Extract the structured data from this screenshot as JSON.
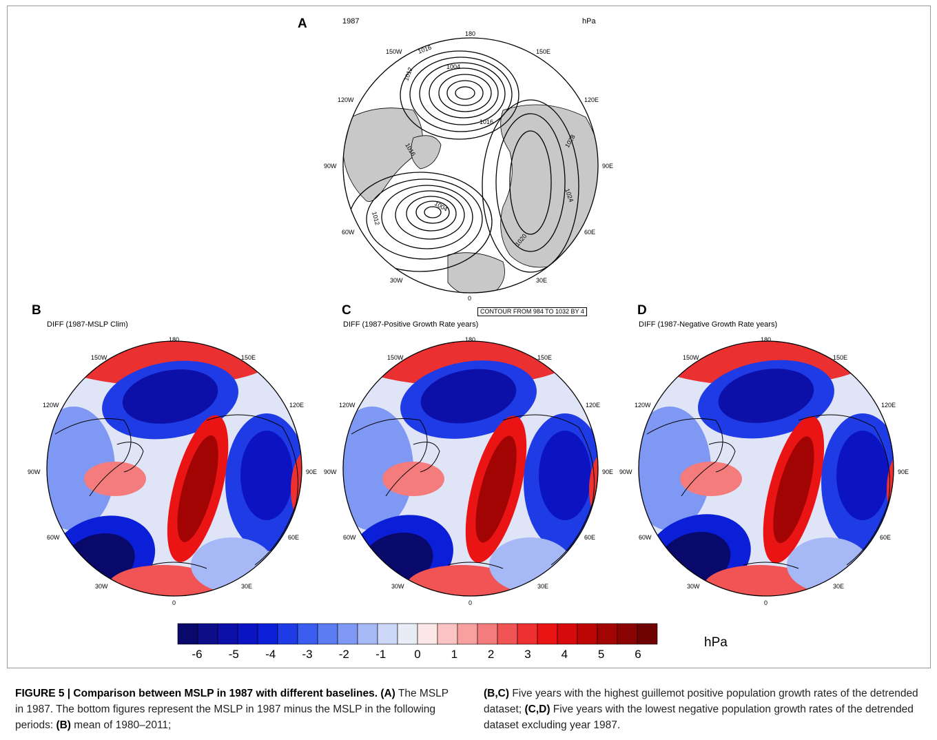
{
  "panels": {
    "A": {
      "letter": "A",
      "year": "1987",
      "unit": "hPa"
    },
    "B": {
      "letter": "B",
      "title": "DIFF (1987-MSLP Clim)"
    },
    "C": {
      "letter": "C",
      "title": "DIFF (1987-Positive Growth Rate years)"
    },
    "D": {
      "letter": "D",
      "title": "DIFF (1987-Negative Growth Rate years)"
    }
  },
  "longitude_labels": {
    "top": "180",
    "top_left": "150W",
    "top_right": "150E",
    "upper_left": "120W",
    "upper_right": "120E",
    "left": "90W",
    "right": "90E",
    "lower_left": "60W",
    "lower_right": "60E",
    "bottom_left": "30W",
    "bottom_right": "30E",
    "bottom": "0"
  },
  "contour_labels_a": [
    "1016",
    "1004",
    "1012",
    "1016",
    "1016",
    "1028",
    "1024",
    "1004",
    "1012",
    "1020"
  ],
  "contour_note": "CONTOUR FROM 984 TO 1032 BY 4",
  "colorbar": {
    "ticks": [
      "-6",
      "-5",
      "-4",
      "-3",
      "-2",
      "-1",
      "0",
      "1",
      "2",
      "3",
      "4",
      "5",
      "6"
    ],
    "unit": "hPa",
    "colors": [
      "#08096b",
      "#0c0e8a",
      "#0c10a8",
      "#0a14c2",
      "#0b1ed8",
      "#1e3be6",
      "#3b5df0",
      "#5c7cf2",
      "#7f98f4",
      "#a7b8f6",
      "#cdd7f7",
      "#e8ecf4",
      "#fde6e6",
      "#fbc3c3",
      "#f8a0a0",
      "#f47c7c",
      "#f05454",
      "#ee3030",
      "#ea1414",
      "#d60a0a",
      "#bc0606",
      "#a20404",
      "#890303",
      "#700202"
    ]
  },
  "caption": {
    "lead": "FIGURE 5 | Comparison between MSLP in 1987 with different baselines.",
    "p1_a": "(A)",
    "p1_a_text": " The MSLP in 1987. The bottom figures represent the MSLP in 1987 minus the MSLP in the following periods: ",
    "p1_b": "(B)",
    "p1_b_text": " mean of 1980–2011;",
    "p2_bc": "(B,C)",
    "p2_bc_text": " Five years with the highest guillemot positive population growth rates of the detrended dataset; ",
    "p2_cd": "(C,D)",
    "p2_cd_text": " Five years with the lowest negative population growth rates of the detrended dataset excluding year 1987."
  }
}
